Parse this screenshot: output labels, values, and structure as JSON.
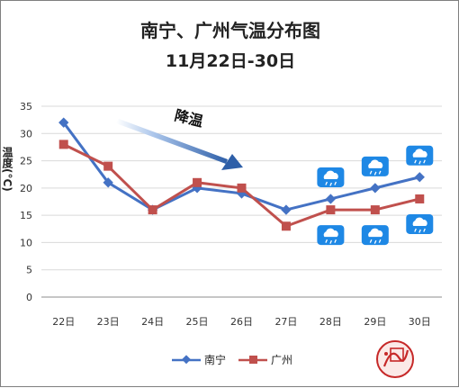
{
  "chart_data": {
    "type": "line",
    "title": "南宁、广州气温分布图",
    "subtitle": "11月22日-30日",
    "ylabel": "温度(°C)",
    "xlabel": "",
    "categories": [
      "22日",
      "23日",
      "24日",
      "25日",
      "26日",
      "27日",
      "28日",
      "29日",
      "30日"
    ],
    "ylim": [
      0,
      35
    ],
    "yticks": [
      0,
      5,
      10,
      15,
      20,
      25,
      30,
      35
    ],
    "grid": true,
    "legend": "bottom",
    "series": [
      {
        "name": "南宁",
        "color": "#4472c4",
        "marker": "diamond",
        "values": [
          32,
          21,
          16,
          20,
          19,
          16,
          18,
          20,
          22
        ]
      },
      {
        "name": "广州",
        "color": "#c0504d",
        "marker": "square",
        "values": [
          28,
          24,
          16,
          21,
          20,
          13,
          16,
          16,
          18
        ]
      }
    ],
    "annotations": {
      "trend_text": "降温",
      "trend_arrow_color": "#2e5fa8",
      "weather_icon": "rain-icon",
      "weather_icon_color": "#1e88e5",
      "nanning_rain_days": [
        "28日",
        "29日",
        "30日"
      ],
      "guangzhou_rain_days": [
        "28日",
        "29日",
        "30日"
      ]
    }
  }
}
